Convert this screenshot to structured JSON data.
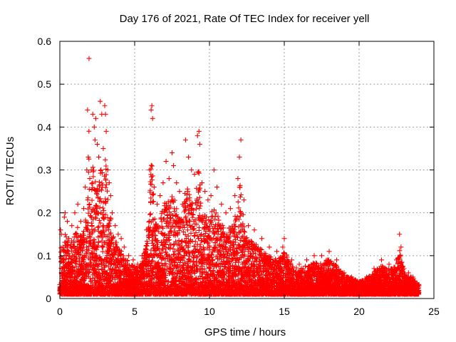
{
  "chart_data": {
    "type": "scatter",
    "title": "Day 176 of 2021, Rate Of TEC Index for receiver yell",
    "xlabel": "GPS time / hours",
    "ylabel": "ROTI / TECUs",
    "xlim": [
      0,
      25
    ],
    "ylim": [
      0,
      0.6
    ],
    "xticks": [
      0,
      5,
      10,
      15,
      20,
      25
    ],
    "yticks": [
      0,
      0.1,
      0.2,
      0.3,
      0.4,
      0.5,
      0.6
    ],
    "xtick_labels": [
      "0",
      "5",
      "10",
      "15",
      "20",
      "25"
    ],
    "ytick_labels": [
      "0",
      "0.1",
      "0.2",
      "0.3",
      "0.4",
      "0.5",
      "0.6"
    ],
    "grid": true,
    "marker": "+",
    "color": "#ff0000",
    "series": [
      {
        "name": "ROTI",
        "points": [
          [
            0.05,
            0.16
          ],
          [
            0.1,
            0.15
          ],
          [
            0.2,
            0.12
          ],
          [
            0.3,
            0.19
          ],
          [
            0.35,
            0.2
          ],
          [
            0.5,
            0.18
          ],
          [
            0.6,
            0.14
          ],
          [
            0.8,
            0.17
          ],
          [
            1.0,
            0.2
          ],
          [
            1.2,
            0.22
          ],
          [
            1.4,
            0.18
          ],
          [
            1.6,
            0.21
          ],
          [
            1.7,
            0.26
          ],
          [
            1.8,
            0.3
          ],
          [
            1.85,
            0.44
          ],
          [
            1.9,
            0.33
          ],
          [
            1.95,
            0.56
          ],
          [
            2.0,
            0.28
          ],
          [
            2.1,
            0.3
          ],
          [
            2.2,
            0.43
          ],
          [
            2.3,
            0.4
          ],
          [
            2.35,
            0.37
          ],
          [
            2.4,
            0.42
          ],
          [
            2.5,
            0.36
          ],
          [
            2.6,
            0.33
          ],
          [
            2.7,
            0.46
          ],
          [
            2.75,
            0.3
          ],
          [
            2.8,
            0.43
          ],
          [
            2.9,
            0.35
          ],
          [
            3.0,
            0.45
          ],
          [
            3.05,
            0.43
          ],
          [
            3.1,
            0.39
          ],
          [
            3.2,
            0.3
          ],
          [
            3.3,
            0.27
          ],
          [
            3.4,
            0.24
          ],
          [
            3.5,
            0.2
          ],
          [
            3.7,
            0.17
          ],
          [
            3.9,
            0.15
          ],
          [
            4.1,
            0.14
          ],
          [
            4.3,
            0.12
          ],
          [
            4.6,
            0.1
          ],
          [
            4.9,
            0.09
          ],
          [
            5.2,
            0.08
          ],
          [
            5.5,
            0.1
          ],
          [
            5.8,
            0.16
          ],
          [
            6.0,
            0.3
          ],
          [
            6.1,
            0.44
          ],
          [
            6.15,
            0.45
          ],
          [
            6.2,
            0.42
          ],
          [
            6.3,
            0.26
          ],
          [
            6.5,
            0.22
          ],
          [
            6.7,
            0.24
          ],
          [
            6.9,
            0.27
          ],
          [
            7.1,
            0.32
          ],
          [
            7.3,
            0.28
          ],
          [
            7.5,
            0.34
          ],
          [
            7.6,
            0.31
          ],
          [
            7.8,
            0.27
          ],
          [
            8.0,
            0.25
          ],
          [
            8.2,
            0.22
          ],
          [
            8.4,
            0.37
          ],
          [
            8.6,
            0.33
          ],
          [
            8.8,
            0.3
          ],
          [
            9.0,
            0.29
          ],
          [
            9.2,
            0.38
          ],
          [
            9.3,
            0.39
          ],
          [
            9.35,
            0.36
          ],
          [
            9.5,
            0.27
          ],
          [
            9.7,
            0.25
          ],
          [
            9.9,
            0.23
          ],
          [
            10.1,
            0.24
          ],
          [
            10.3,
            0.3
          ],
          [
            10.5,
            0.26
          ],
          [
            10.8,
            0.22
          ],
          [
            11.1,
            0.2
          ],
          [
            11.4,
            0.21
          ],
          [
            11.7,
            0.24
          ],
          [
            11.9,
            0.28
          ],
          [
            12.0,
            0.33
          ],
          [
            12.1,
            0.37
          ],
          [
            12.3,
            0.23
          ],
          [
            12.6,
            0.17
          ],
          [
            13.0,
            0.16
          ],
          [
            13.5,
            0.14
          ],
          [
            14.0,
            0.12
          ],
          [
            14.5,
            0.11
          ],
          [
            14.9,
            0.12
          ],
          [
            15.0,
            0.14
          ],
          [
            15.5,
            0.09
          ],
          [
            16.0,
            0.08
          ],
          [
            16.5,
            0.09
          ],
          [
            17.0,
            0.1
          ],
          [
            17.5,
            0.1
          ],
          [
            18.0,
            0.11
          ],
          [
            18.5,
            0.09
          ],
          [
            19.0,
            0.06
          ],
          [
            19.5,
            0.05
          ],
          [
            20.0,
            0.04
          ],
          [
            20.5,
            0.05
          ],
          [
            21.0,
            0.07
          ],
          [
            21.5,
            0.09
          ],
          [
            22.0,
            0.08
          ],
          [
            22.5,
            0.09
          ],
          [
            22.7,
            0.15
          ],
          [
            22.8,
            0.12
          ],
          [
            23.0,
            0.07
          ],
          [
            23.3,
            0.06
          ],
          [
            23.6,
            0.05
          ],
          [
            24.0,
            0.03
          ]
        ]
      }
    ]
  }
}
